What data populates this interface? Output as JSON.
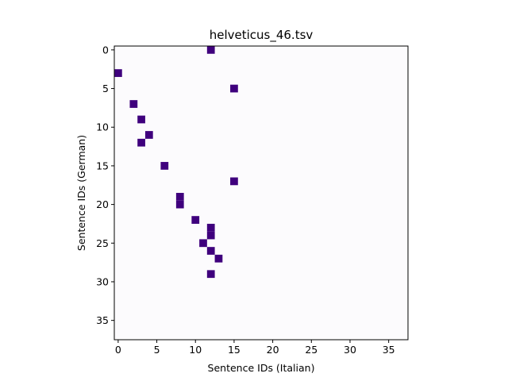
{
  "chart_data": {
    "type": "heatmap",
    "title": "helveticus_46.tsv",
    "xlabel": "Sentence IDs (Italian)",
    "ylabel": "Sentence IDs (German)",
    "n_cols": 38,
    "n_rows": 38,
    "xlim": [
      -0.5,
      37.5
    ],
    "ylim": [
      37.5,
      -0.5
    ],
    "y_axis_inverted": true,
    "xticks": [
      0,
      5,
      10,
      15,
      20,
      25,
      30,
      35
    ],
    "yticks": [
      0,
      5,
      10,
      15,
      20,
      25,
      30,
      35
    ],
    "grid": false,
    "colors": {
      "background_cell": "#fcfbfd",
      "active_cell": "#3f007d"
    },
    "cells": [
      {
        "x": 12,
        "y": 0
      },
      {
        "x": 0,
        "y": 3
      },
      {
        "x": 15,
        "y": 5
      },
      {
        "x": 2,
        "y": 7
      },
      {
        "x": 3,
        "y": 9
      },
      {
        "x": 4,
        "y": 11
      },
      {
        "x": 3,
        "y": 12
      },
      {
        "x": 6,
        "y": 15
      },
      {
        "x": 15,
        "y": 17
      },
      {
        "x": 8,
        "y": 19
      },
      {
        "x": 8,
        "y": 20
      },
      {
        "x": 10,
        "y": 22
      },
      {
        "x": 12,
        "y": 23
      },
      {
        "x": 12,
        "y": 24
      },
      {
        "x": 11,
        "y": 25
      },
      {
        "x": 12,
        "y": 26
      },
      {
        "x": 13,
        "y": 27
      },
      {
        "x": 12,
        "y": 29
      }
    ]
  }
}
